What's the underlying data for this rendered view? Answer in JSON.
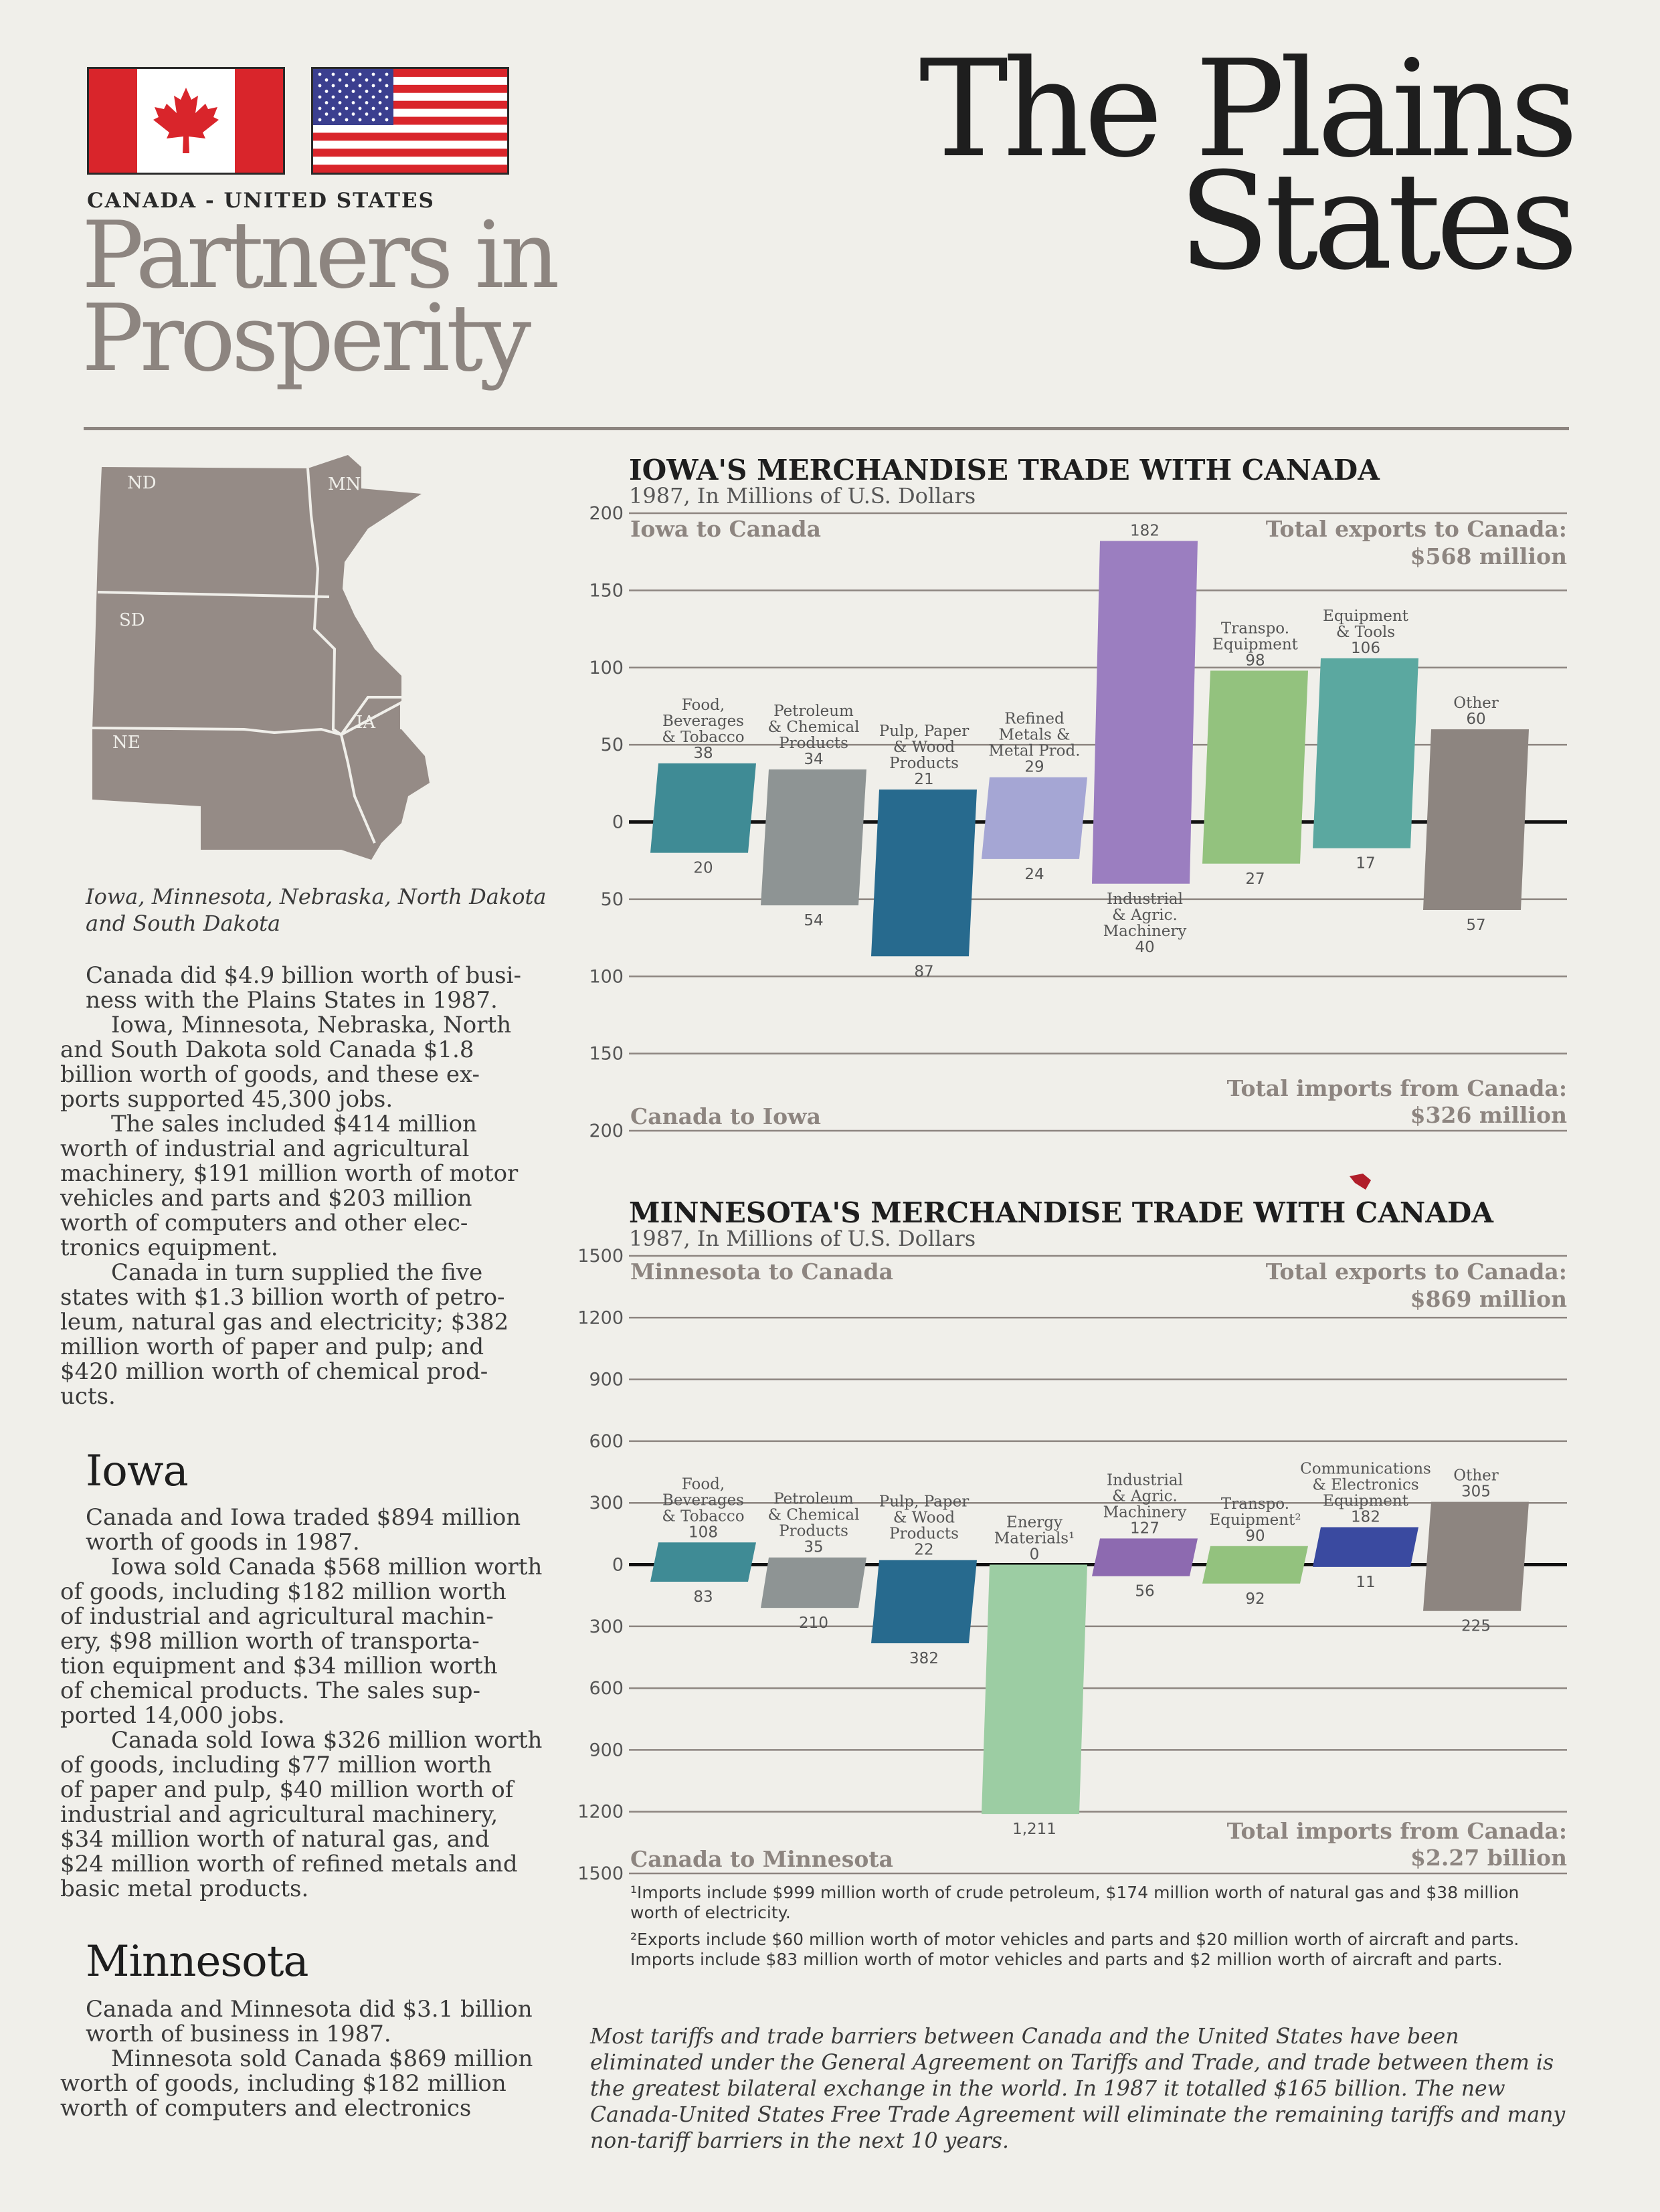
{
  "header": {
    "country_label": "CANADA - UNITED STATES",
    "partners_line1": "Partners in",
    "partners_line2": "Prosperity",
    "title_line1": "The Plains",
    "title_line2": "States"
  },
  "map": {
    "state_labels": [
      "ND",
      "MN",
      "SD",
      "NE",
      "IA"
    ],
    "caption_line1": "Iowa, Minnesota, Nebraska, North Dakota",
    "caption_line2": "and South Dakota"
  },
  "intro": [
    {
      "indent": false,
      "lines": [
        "Canada did $4.9 billion worth of busi-",
        "ness with the Plains States in 1987."
      ]
    },
    {
      "indent": true,
      "lines": [
        "Iowa, Minnesota, Nebraska, North",
        "and South Dakota sold Canada $1.8",
        "billion worth of goods, and these ex-",
        "ports supported 45,300 jobs."
      ]
    },
    {
      "indent": true,
      "lines": [
        "The sales included $414 million",
        "worth of industrial and agricultural",
        "machinery, $191 million worth of motor",
        "vehicles and parts and $203 million",
        "worth of computers and other elec-",
        "tronics equipment."
      ]
    },
    {
      "indent": true,
      "lines": [
        "Canada in turn supplied the five",
        "states with $1.3 billion worth of petro-",
        "leum, natural gas and electricity; $382",
        "million worth of paper and pulp; and",
        "$420 million worth of chemical prod-",
        "ucts."
      ]
    }
  ],
  "iowa_section": {
    "heading": "Iowa",
    "paragraphs": [
      {
        "indent": false,
        "lines": [
          "Canada and Iowa traded $894 million",
          "worth of goods in 1987."
        ]
      },
      {
        "indent": true,
        "lines": [
          "Iowa sold Canada $568 million worth",
          "of goods, including $182 million worth",
          "of industrial and agricultural machin-",
          "ery, $98 million worth of transporta-",
          "tion equipment and $34 million worth",
          "of chemical products. The sales sup-",
          "ported 14,000 jobs."
        ]
      },
      {
        "indent": true,
        "lines": [
          "Canada sold Iowa $326 million worth",
          "of goods, including $77 million worth",
          "of paper and pulp, $40 million worth of",
          "industrial and agricultural machinery,",
          "$34 million worth of natural gas, and",
          "$24 million worth of refined metals and",
          "basic metal products."
        ]
      }
    ]
  },
  "minnesota_section": {
    "heading": "Minnesota",
    "paragraphs": [
      {
        "indent": false,
        "lines": [
          "Canada and Minnesota did $3.1 billion",
          "worth of business in 1987."
        ]
      },
      {
        "indent": true,
        "lines": [
          "Minnesota sold Canada $869 million",
          "worth of goods, including $182 million",
          "worth of computers and electronics"
        ]
      }
    ]
  },
  "chart_data": [
    {
      "type": "bar",
      "title": "IOWA'S MERCHANDISE TRADE WITH CANADA",
      "subtitle": "1987, In Millions of U.S. Dollars",
      "exports_label": "Iowa to Canada",
      "imports_label": "Canada to Iowa",
      "total_exports": {
        "label": "Total exports to Canada:",
        "value": "$568 million"
      },
      "total_imports": {
        "label": "Total imports from Canada:",
        "value": "$326 million"
      },
      "ylim": [
        -200,
        200
      ],
      "yticks": [
        200,
        150,
        100,
        50,
        0,
        50,
        100,
        150,
        200
      ],
      "categories": [
        {
          "lines": [
            "Food,",
            "Beverages",
            "& Tobacco"
          ],
          "export": 38,
          "import": 20,
          "color": "#3f8b95",
          "label_pos": "top"
        },
        {
          "lines": [
            "Petroleum",
            "& Chemical",
            "Products"
          ],
          "export": 34,
          "import": 54,
          "color": "#8e9494",
          "label_pos": "top"
        },
        {
          "lines": [
            "Pulp, Paper",
            "& Wood",
            "Products"
          ],
          "export": 21,
          "import": 87,
          "color": "#276a8e",
          "label_pos": "top"
        },
        {
          "lines": [
            "Refined",
            "Metals &",
            "Metal Prod."
          ],
          "export": 29,
          "import": 24,
          "color": "#a5a6d4",
          "label_pos": "top"
        },
        {
          "lines": [
            "Industrial",
            "& Agric.",
            "Machinery"
          ],
          "export": 182,
          "import": 40,
          "color": "#9b7ec0",
          "label_pos": "bottom"
        },
        {
          "lines": [
            "Transpo.",
            "Equipment"
          ],
          "export": 98,
          "import": 27,
          "color": "#93c27e",
          "label_pos": "top"
        },
        {
          "lines": [
            "Equipment",
            "& Tools"
          ],
          "export": 106,
          "import": 17,
          "color": "#5ba8a0",
          "label_pos": "top"
        },
        {
          "lines": [
            "Other"
          ],
          "export": 60,
          "import": 57,
          "color": "#8d8580",
          "label_pos": "top"
        }
      ]
    },
    {
      "type": "bar",
      "title": "MINNESOTA'S MERCHANDISE TRADE WITH CANADA",
      "subtitle": "1987, In Millions of U.S. Dollars",
      "exports_label": "Minnesota to Canada",
      "imports_label": "Canada to Minnesota",
      "total_exports": {
        "label": "Total exports to Canada:",
        "value": "$869 million"
      },
      "total_imports": {
        "label": "Total imports from Canada:",
        "value": "$2.27 billion"
      },
      "ylim": [
        -1500,
        1500
      ],
      "yticks": [
        1500,
        1200,
        900,
        600,
        300,
        0,
        300,
        600,
        900,
        1200,
        1500
      ],
      "categories": [
        {
          "lines": [
            "Food,",
            "Beverages",
            "& Tobacco"
          ],
          "export": 108,
          "import": 83,
          "color": "#3f8b95",
          "label_pos": "top"
        },
        {
          "lines": [
            "Petroleum",
            "& Chemical",
            "Products"
          ],
          "export": 35,
          "import": 210,
          "color": "#8e9494",
          "label_pos": "top"
        },
        {
          "lines": [
            "Pulp, Paper",
            "& Wood",
            "Products"
          ],
          "export": 22,
          "import": 382,
          "color": "#276a8e",
          "label_pos": "top"
        },
        {
          "lines": [
            "Energy",
            "Materials¹"
          ],
          "export": 0,
          "import": 1211,
          "export_label": "0",
          "import_label": "1,211",
          "color": "#9ccda3",
          "label_pos": "top"
        },
        {
          "lines": [
            "Industrial",
            "& Agric.",
            "Machinery"
          ],
          "export": 127,
          "import": 56,
          "color": "#8d6ab0",
          "label_pos": "top"
        },
        {
          "lines": [
            "Transpo.",
            "Equipment²"
          ],
          "export": 90,
          "import": 92,
          "color": "#93c27e",
          "label_pos": "top"
        },
        {
          "lines": [
            "Communications",
            "& Electronics",
            "Equipment"
          ],
          "export": 182,
          "import": 11,
          "color": "#3a4aa0",
          "label_pos": "top"
        },
        {
          "lines": [
            "Other"
          ],
          "export": 305,
          "import": 225,
          "color": "#8d8580",
          "label_pos": "top"
        }
      ]
    }
  ],
  "footnotes": [
    "¹Imports include $999 million worth of crude petroleum, $174 million worth of natural gas and $38 million worth of electricity.",
    "²Exports include $60 million worth of motor vehicles and parts and $20 million worth of aircraft and parts. Imports include $83 million worth of motor vehicles and parts and $2 million worth of aircraft and parts."
  ],
  "bottom_note": "Most tariffs and trade barriers between Canada and the United States have been eliminated under the General Agreement on Tariffs and Trade, and trade between them is the greatest bilateral exchange in the world. In 1987 it totalled $165 billion. The new Canada-United States Free Trade Agreement will eliminate the remaining tariffs and many non-tariff barriers in the next 10 years.",
  "colors": {
    "map_fill": "#958b86",
    "accent_red": "#d9252b",
    "rule": "#8d8580"
  }
}
